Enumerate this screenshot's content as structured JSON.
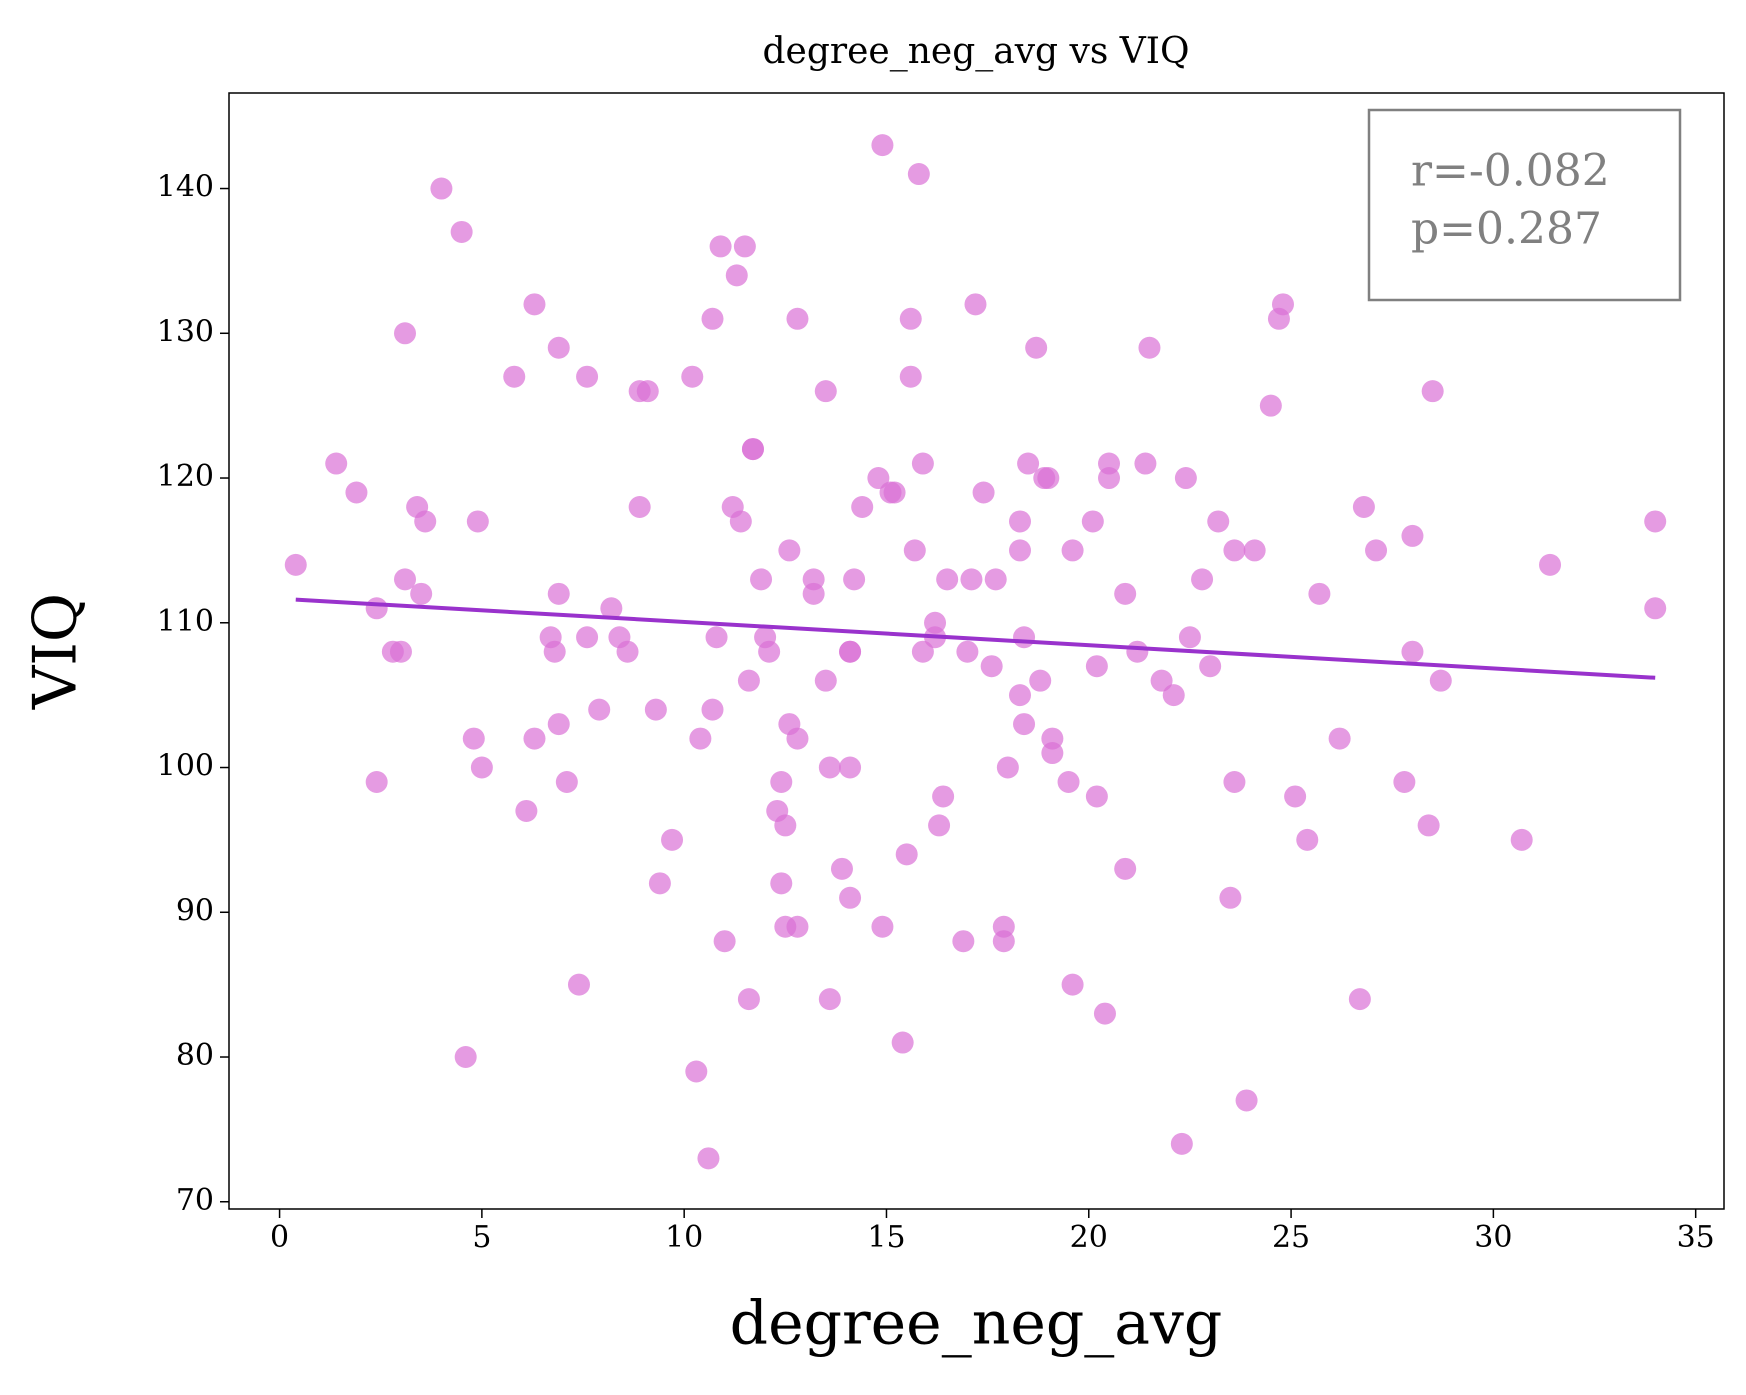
{
  "chart_data": {
    "type": "scatter",
    "title": "degree_neg_avg vs VIQ",
    "x_label": "degree_neg_avg",
    "y_label": "VIQ",
    "color": "#da70d6",
    "x": [
      0.4,
      1.4,
      1.9,
      2.4,
      2.4,
      2.8,
      3.0,
      3.1,
      3.1,
      3.4,
      3.5,
      3.6,
      4.0,
      4.5,
      4.6,
      4.8,
      4.9,
      5.0,
      5.8,
      6.1,
      6.3,
      6.3,
      6.7,
      6.8,
      6.9,
      6.9,
      6.9,
      7.1,
      7.4,
      7.6,
      7.6,
      7.9,
      8.2,
      8.4,
      8.6,
      8.9,
      8.9,
      9.1,
      9.3,
      9.4,
      9.7,
      10.2,
      10.3,
      10.4,
      10.6,
      10.7,
      10.7,
      10.8,
      10.9,
      11.0,
      11.2,
      11.3,
      11.4,
      11.5,
      11.6,
      11.6,
      11.7,
      11.7,
      11.9,
      12.0,
      12.1,
      12.3,
      12.4,
      12.4,
      12.5,
      12.5,
      12.6,
      12.6,
      12.8,
      12.8,
      12.8,
      13.2,
      13.2,
      13.5,
      13.5,
      13.6,
      13.6,
      13.9,
      14.1,
      14.1,
      14.1,
      14.1,
      14.2,
      14.4,
      14.8,
      14.9,
      14.9,
      15.1,
      15.2,
      15.5,
      15.4,
      15.6,
      15.6,
      15.7,
      15.8,
      15.9,
      15.9,
      16.2,
      16.2,
      16.3,
      16.4,
      16.5,
      16.9,
      17.0,
      17.1,
      17.2,
      17.4,
      17.6,
      17.7,
      17.9,
      17.9,
      18.0,
      18.3,
      18.3,
      18.3,
      18.4,
      18.4,
      18.5,
      18.7,
      18.8,
      18.9,
      19.0,
      19.1,
      19.1,
      19.5,
      19.6,
      19.6,
      20.1,
      20.2,
      20.2,
      20.4,
      20.5,
      20.5,
      20.9,
      20.9,
      21.2,
      21.4,
      21.5,
      21.8,
      22.1,
      22.3,
      22.4,
      22.5,
      22.8,
      23.0,
      23.2,
      23.5,
      23.6,
      23.6,
      23.9,
      24.1,
      24.5,
      24.7,
      24.8,
      25.1,
      25.4,
      25.7,
      26.2,
      26.7,
      26.8,
      27.1,
      27.8,
      28.0,
      28.0,
      28.4,
      28.5,
      28.7,
      30.7,
      31.4,
      34.0,
      34.0
    ],
    "y": [
      114,
      121,
      119,
      99,
      111,
      108,
      108,
      130,
      113,
      118,
      112,
      117,
      140,
      137,
      80,
      102,
      117,
      100,
      127,
      97,
      132,
      102,
      109,
      108,
      112,
      129,
      103,
      99,
      85,
      127,
      109,
      104,
      111,
      109,
      108,
      118,
      126,
      126,
      104,
      92,
      95,
      127,
      79,
      102,
      73,
      104,
      131,
      109,
      136,
      88,
      118,
      134,
      117,
      136,
      106,
      84,
      122,
      122,
      113,
      109,
      108,
      97,
      92,
      99,
      96,
      89,
      115,
      103,
      102,
      89,
      131,
      113,
      112,
      126,
      106,
      84,
      100,
      93,
      108,
      108,
      91,
      100,
      113,
      118,
      120,
      89,
      143,
      119,
      119,
      94,
      81,
      127,
      131,
      115,
      141,
      108,
      121,
      109,
      110,
      96,
      98,
      113,
      88,
      108,
      113,
      132,
      119,
      107,
      113,
      89,
      88,
      100,
      117,
      115,
      105,
      103,
      109,
      121,
      129,
      106,
      120,
      120,
      102,
      101,
      99,
      85,
      115,
      117,
      98,
      107,
      83,
      120,
      121,
      93,
      112,
      108,
      121,
      129,
      106,
      105,
      74,
      120,
      109,
      113,
      107,
      117,
      91,
      99,
      115,
      77,
      115,
      125,
      131,
      132,
      98,
      95,
      112,
      102,
      84,
      118,
      115,
      99,
      108,
      116,
      96,
      126,
      106,
      95,
      114,
      117,
      111
    ],
    "trendline": {
      "color": "#9932cc",
      "x": [
        0.4,
        34.0
      ],
      "y": [
        111.6,
        106.2
      ]
    },
    "annotations": [
      "r=-0.082",
      "p=0.287"
    ],
    "xlim": [
      -1.25,
      35.7
    ],
    "ylim": [
      69.5,
      146.6
    ],
    "xticks": [
      0,
      5,
      10,
      15,
      20,
      25,
      30,
      35
    ],
    "yticks": [
      70,
      80,
      90,
      100,
      110,
      120,
      130,
      140
    ]
  }
}
